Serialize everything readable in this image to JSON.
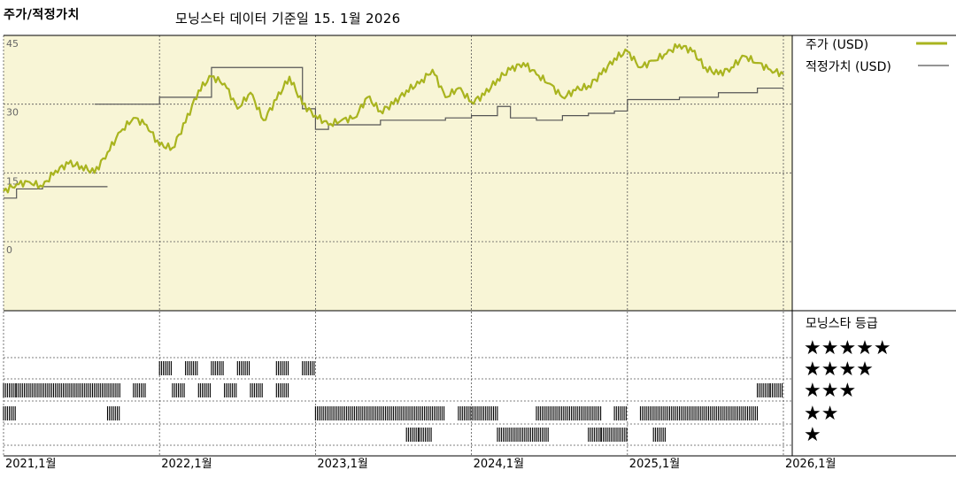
{
  "header": {
    "title": "주가/적정가치",
    "subtitle": "모닝스타 데이터 기준일 15. 1월 2026"
  },
  "legend": {
    "price_label": "주가 (USD)",
    "fair_label": "적정가치 (USD)",
    "price_color": "#a9b41f",
    "fair_color": "#555555"
  },
  "rating_panel": {
    "title": "모닝스타 등급",
    "rows": [
      "★★★★★",
      "★★★★",
      "★★★",
      "★★",
      "★"
    ]
  },
  "chart_data": {
    "type": "line",
    "x_range": [
      "2021-01",
      "2026-01"
    ],
    "x_ticks": [
      "2021,1월",
      "2022,1월",
      "2023,1월",
      "2024,1월",
      "2025,1월",
      "2026,1월"
    ],
    "y_ticks": [
      "45",
      "30",
      "15",
      "0"
    ],
    "ylim": [
      0,
      45
    ],
    "background": "#f8f5d6",
    "series": [
      {
        "name": "주가 (USD)",
        "points": [
          [
            "2021-01",
            11.0
          ],
          [
            "2021-02",
            12.5
          ],
          [
            "2021-03",
            13.0
          ],
          [
            "2021-04",
            12.0
          ],
          [
            "2021-05",
            15.5
          ],
          [
            "2021-06",
            17.0
          ],
          [
            "2021-07",
            16.5
          ],
          [
            "2021-08",
            15.0
          ],
          [
            "2021-09",
            19.5
          ],
          [
            "2021-10",
            24.0
          ],
          [
            "2021-11",
            27.0
          ],
          [
            "2021-12",
            25.5
          ],
          [
            "2022-01",
            21.0
          ],
          [
            "2022-02",
            20.5
          ],
          [
            "2022-03",
            26.0
          ],
          [
            "2022-04",
            33.0
          ],
          [
            "2022-05",
            36.0
          ],
          [
            "2022-06",
            34.5
          ],
          [
            "2022-07",
            29.0
          ],
          [
            "2022-08",
            32.5
          ],
          [
            "2022-09",
            26.5
          ],
          [
            "2022-10",
            31.0
          ],
          [
            "2022-11",
            36.0
          ],
          [
            "2022-12",
            30.0
          ],
          [
            "2023-01",
            27.5
          ],
          [
            "2023-02",
            25.5
          ],
          [
            "2023-03",
            26.5
          ],
          [
            "2023-04",
            27.0
          ],
          [
            "2023-05",
            31.5
          ],
          [
            "2023-06",
            28.5
          ],
          [
            "2023-07",
            30.0
          ],
          [
            "2023-08",
            33.0
          ],
          [
            "2023-09",
            34.5
          ],
          [
            "2023-10",
            37.5
          ],
          [
            "2023-11",
            31.5
          ],
          [
            "2023-12",
            33.5
          ],
          [
            "2024-01",
            30.5
          ],
          [
            "2024-02",
            32.0
          ],
          [
            "2024-03",
            35.5
          ],
          [
            "2024-04",
            37.5
          ],
          [
            "2024-05",
            39.0
          ],
          [
            "2024-06",
            36.5
          ],
          [
            "2024-07",
            34.5
          ],
          [
            "2024-08",
            31.5
          ],
          [
            "2024-09",
            33.0
          ],
          [
            "2024-10",
            34.0
          ],
          [
            "2024-11",
            36.5
          ],
          [
            "2024-12",
            40.0
          ],
          [
            "2025-01",
            41.5
          ],
          [
            "2025-02",
            38.0
          ],
          [
            "2025-03",
            39.5
          ],
          [
            "2025-04",
            41.0
          ],
          [
            "2025-05",
            43.0
          ],
          [
            "2025-06",
            41.5
          ],
          [
            "2025-07",
            38.0
          ],
          [
            "2025-08",
            36.5
          ],
          [
            "2025-09",
            38.0
          ],
          [
            "2025-10",
            40.5
          ],
          [
            "2025-11",
            39.0
          ],
          [
            "2025-12",
            37.5
          ],
          [
            "2026-01",
            36.5
          ]
        ]
      },
      {
        "name": "적정가치 (USD)",
        "points": [
          [
            "2021-01",
            9.5
          ],
          [
            "2021-02",
            9.5
          ],
          [
            "2021-02",
            11.5
          ],
          [
            "2021-04",
            11.5
          ],
          [
            "2021-04",
            12.0
          ],
          [
            "2021-09",
            12.0
          ],
          [
            "2021-08",
            30.0
          ],
          [
            "2022-01",
            30.0
          ],
          [
            "2022-01",
            31.5
          ],
          [
            "2022-05",
            31.5
          ],
          [
            "2022-05",
            38.0
          ],
          [
            "2022-12",
            38.0
          ],
          [
            "2022-12",
            29.0
          ],
          [
            "2023-01",
            29.0
          ],
          [
            "2023-01",
            24.5
          ],
          [
            "2023-02",
            24.5
          ],
          [
            "2023-02",
            25.5
          ],
          [
            "2023-06",
            25.5
          ],
          [
            "2023-06",
            26.5
          ],
          [
            "2023-11",
            26.5
          ],
          [
            "2023-11",
            27.0
          ],
          [
            "2024-01",
            27.0
          ],
          [
            "2024-01",
            27.5
          ],
          [
            "2024-03",
            27.5
          ],
          [
            "2024-03",
            29.5
          ],
          [
            "2024-04",
            29.5
          ],
          [
            "2024-04",
            27.0
          ],
          [
            "2024-06",
            27.0
          ],
          [
            "2024-06",
            26.5
          ],
          [
            "2024-08",
            26.5
          ],
          [
            "2024-08",
            27.5
          ],
          [
            "2024-10",
            27.5
          ],
          [
            "2024-10",
            28.0
          ],
          [
            "2024-12",
            28.0
          ],
          [
            "2024-12",
            28.5
          ],
          [
            "2025-01",
            28.5
          ],
          [
            "2025-01",
            31.0
          ],
          [
            "2025-05",
            31.0
          ],
          [
            "2025-05",
            31.5
          ],
          [
            "2025-08",
            31.5
          ],
          [
            "2025-08",
            32.5
          ],
          [
            "2025-11",
            32.5
          ],
          [
            "2025-11",
            33.5
          ],
          [
            "2026-01",
            33.5
          ]
        ]
      }
    ],
    "rating_bars": [
      {
        "stars": 4,
        "spans": [
          [
            "2022-01",
            "2022-02"
          ],
          [
            "2022-03",
            "2022-04"
          ],
          [
            "2022-05",
            "2022-06"
          ],
          [
            "2022-07",
            "2022-08"
          ],
          [
            "2022-10",
            "2022-11"
          ],
          [
            "2022-12",
            "2023-01"
          ]
        ]
      },
      {
        "stars": 3,
        "spans": [
          [
            "2021-01",
            "2021-02"
          ],
          [
            "2021-02",
            "2021-10"
          ],
          [
            "2021-11",
            "2021-12"
          ],
          [
            "2022-02",
            "2022-03"
          ],
          [
            "2022-04",
            "2022-05"
          ],
          [
            "2022-06",
            "2022-07"
          ],
          [
            "2022-08",
            "2022-09"
          ],
          [
            "2022-10",
            "2022-11"
          ],
          [
            "2025-11",
            "2025-12"
          ],
          [
            "2025-12",
            "2026-01"
          ]
        ]
      },
      {
        "stars": 2,
        "spans": [
          [
            "2021-01",
            "2021-02"
          ],
          [
            "2021-09",
            "2021-10"
          ],
          [
            "2023-01",
            "2023-11"
          ],
          [
            "2023-12",
            "2024-03"
          ],
          [
            "2024-06",
            "2024-11"
          ],
          [
            "2024-12",
            "2025-01"
          ],
          [
            "2025-02",
            "2025-11"
          ]
        ]
      },
      {
        "stars": 1,
        "spans": [
          [
            "2023-08",
            "2023-09"
          ],
          [
            "2023-09",
            "2023-10"
          ],
          [
            "2024-03",
            "2024-06"
          ],
          [
            "2024-06",
            "2024-07"
          ],
          [
            "2024-10",
            "2024-11"
          ],
          [
            "2024-11",
            "2025-01"
          ],
          [
            "2025-03",
            "2025-04"
          ]
        ]
      }
    ]
  }
}
